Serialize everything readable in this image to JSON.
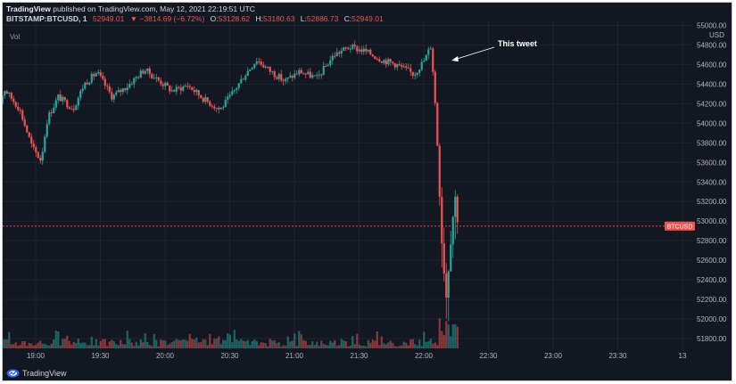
{
  "header": {
    "publisher": "TradingView",
    "published_text": "published on TradingView.com, May 12, 2021 22:19:51 UTC",
    "symbol": "BITSTAMP:BTCUSD, 1",
    "last": "52949.01",
    "change": "▼ −3814.69 (−6.72%)",
    "o_label": "O:",
    "o_value": "53128.62",
    "h_label": "H:",
    "h_value": "53180.63",
    "l_label": "L:",
    "l_value": "52886.73",
    "c_label": "C:",
    "c_value": "52949.01"
  },
  "vol_label": "Vol",
  "annotation": "This tweet",
  "price_tag": "BTCUSD",
  "footer": {
    "brand": "TradingView"
  },
  "colors": {
    "background": "#131722",
    "up": "#26a69a",
    "down": "#ef5350",
    "grid": "#1f2330",
    "text": "#b2b5be"
  },
  "chart_data": {
    "type": "candlestick",
    "currency_label": "USD",
    "y_ticks": [
      "55000.00",
      "54800.00",
      "54600.00",
      "54400.00",
      "54200.00",
      "54000.00",
      "53800.00",
      "53600.00",
      "53400.00",
      "53200.00",
      "53000.00",
      "52800.00",
      "52600.00",
      "52400.00",
      "52200.00",
      "52000.00",
      "51800.00"
    ],
    "x_ticks": [
      "19:00",
      "19:30",
      "20:00",
      "20:30",
      "21:00",
      "21:30",
      "22:00",
      "22:30",
      "23:00",
      "23:30",
      "13"
    ],
    "ylim": [
      51700,
      55050
    ],
    "current_price": 52949.01,
    "grid": true,
    "series": [
      {
        "time": "18:40",
        "close": 54000
      },
      {
        "time": "18:45",
        "close": 54350
      },
      {
        "time": "18:52",
        "close": 54150
      },
      {
        "time": "18:58",
        "close": 53750
      },
      {
        "time": "19:02",
        "close": 53620
      },
      {
        "time": "19:05",
        "close": 54050
      },
      {
        "time": "19:10",
        "close": 54270
      },
      {
        "time": "19:17",
        "close": 54150
      },
      {
        "time": "19:22",
        "close": 54400
      },
      {
        "time": "19:28",
        "close": 54520
      },
      {
        "time": "19:35",
        "close": 54270
      },
      {
        "time": "19:42",
        "close": 54380
      },
      {
        "time": "19:50",
        "close": 54550
      },
      {
        "time": "19:57",
        "close": 54430
      },
      {
        "time": "20:03",
        "close": 54330
      },
      {
        "time": "20:10",
        "close": 54390
      },
      {
        "time": "20:18",
        "close": 54240
      },
      {
        "time": "20:25",
        "close": 54140
      },
      {
        "time": "20:30",
        "close": 54280
      },
      {
        "time": "20:36",
        "close": 54480
      },
      {
        "time": "20:42",
        "close": 54650
      },
      {
        "time": "20:48",
        "close": 54540
      },
      {
        "time": "20:55",
        "close": 54430
      },
      {
        "time": "21:02",
        "close": 54530
      },
      {
        "time": "21:10",
        "close": 54460
      },
      {
        "time": "21:18",
        "close": 54700
      },
      {
        "time": "21:25",
        "close": 54780
      },
      {
        "time": "21:32",
        "close": 54740
      },
      {
        "time": "21:40",
        "close": 54650
      },
      {
        "time": "21:47",
        "close": 54600
      },
      {
        "time": "21:55",
        "close": 54500
      },
      {
        "time": "22:00",
        "close": 54650
      },
      {
        "time": "22:03",
        "close": 54800
      },
      {
        "time": "22:05",
        "close": 54150
      },
      {
        "time": "22:07",
        "close": 53300
      },
      {
        "time": "22:08",
        "close": 52800
      },
      {
        "time": "22:10",
        "close": 52250
      },
      {
        "time": "22:12",
        "close": 52850
      },
      {
        "time": "22:14",
        "close": 53250
      },
      {
        "time": "22:16",
        "close": 52949.01
      }
    ]
  }
}
